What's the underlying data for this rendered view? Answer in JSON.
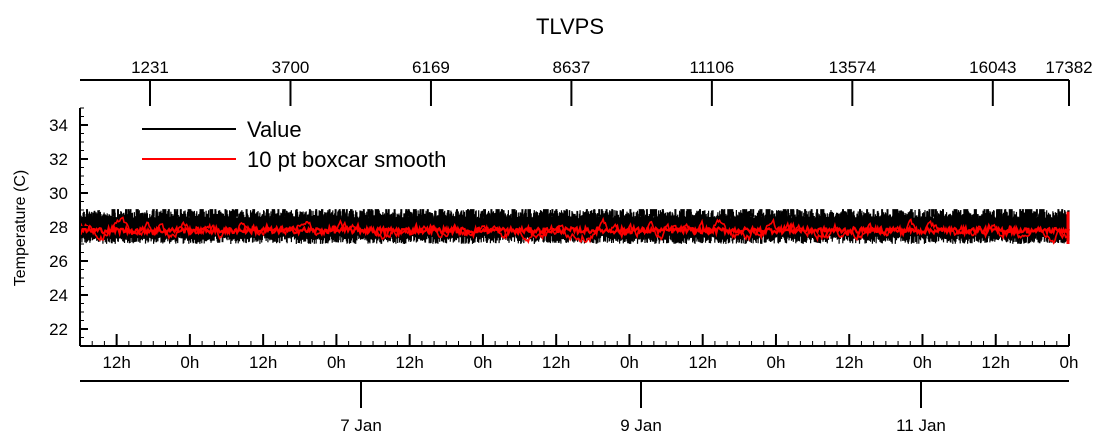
{
  "chart_data": {
    "type": "line",
    "title": "TLVPS",
    "ylabel": "Temperature (C)",
    "ylim": [
      21,
      35
    ],
    "yticks": [
      22,
      24,
      26,
      28,
      30,
      32,
      34
    ],
    "top_axis": {
      "range": [
        1,
        17382
      ],
      "ticks": [
        1231,
        3700,
        6169,
        8637,
        11106,
        13574,
        16043,
        17382
      ]
    },
    "time_axis": {
      "hour_ticks": [
        "12h",
        "0h",
        "12h",
        "0h",
        "12h",
        "0h",
        "12h",
        "0h",
        "12h",
        "0h",
        "12h",
        "0h",
        "12h",
        "0h"
      ],
      "day_ticks": [
        "7 Jan",
        "9 Jan",
        "11 Jan"
      ]
    },
    "legend_position": "top-left",
    "series": [
      {
        "name": "Value",
        "color": "#000000",
        "band": [
          27.0,
          29.0
        ],
        "typical": 28.0
      },
      {
        "name": "10 pt boxcar smooth",
        "color": "#ff0000",
        "band": [
          26.8,
          28.8
        ],
        "typical": 27.8
      }
    ]
  }
}
